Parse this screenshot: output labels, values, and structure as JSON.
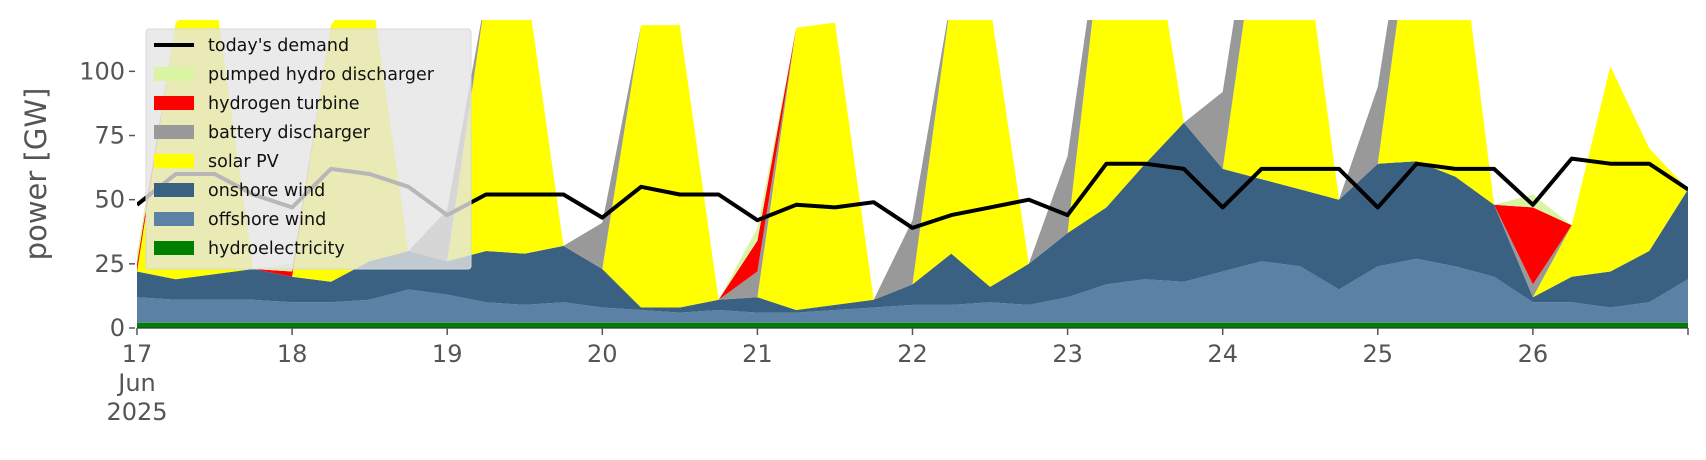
{
  "chart_data": {
    "type": "area",
    "ylabel": "power [GW]",
    "ylim": [
      0,
      120
    ],
    "y_ticks": [
      0,
      25,
      50,
      75,
      100
    ],
    "x_days": [
      17,
      18,
      19,
      20,
      21,
      22,
      23,
      24,
      25,
      26,
      27
    ],
    "x_tick_labels": [
      [
        "17",
        "Jun",
        "2025"
      ],
      [
        "18"
      ],
      [
        "19"
      ],
      [
        "20"
      ],
      [
        "21"
      ],
      [
        "22"
      ],
      [
        "23"
      ],
      [
        "24"
      ],
      [
        "25"
      ],
      [
        "26"
      ],
      [
        ""
      ]
    ],
    "xlim": [
      17,
      27
    ],
    "stack_order_bottom_to_top": [
      "hydroelectricity",
      "offshore wind",
      "onshore wind",
      "solar PV",
      "battery discharger",
      "hydrogen turbine",
      "pumped hydro discharger"
    ],
    "x": [
      17.0,
      17.25,
      17.5,
      17.75,
      18.0,
      18.25,
      18.5,
      18.75,
      19.0,
      19.25,
      19.5,
      19.75,
      20.0,
      20.25,
      20.5,
      20.75,
      21.0,
      21.25,
      21.5,
      21.75,
      22.0,
      22.25,
      22.5,
      22.75,
      23.0,
      23.25,
      23.5,
      23.75,
      24.0,
      24.25,
      24.5,
      24.75,
      25.0,
      25.25,
      25.5,
      25.75,
      26.0,
      26.25,
      26.5,
      26.75,
      27.0
    ],
    "series": [
      {
        "name": "hydroelectricity",
        "color": "#008000",
        "values": [
          2,
          2,
          2,
          2,
          2,
          2,
          2,
          2,
          2,
          2,
          2,
          2,
          2,
          2,
          2,
          2,
          2,
          2,
          2,
          2,
          2,
          2,
          2,
          2,
          2,
          2,
          2,
          2,
          2,
          2,
          2,
          2,
          2,
          2,
          2,
          2,
          2,
          2,
          2,
          2,
          2
        ]
      },
      {
        "name": "offshore wind",
        "color": "#5b82a4",
        "values": [
          10,
          9,
          9,
          9,
          8,
          8,
          9,
          13,
          11,
          8,
          7,
          8,
          6,
          5,
          4,
          5,
          4,
          4,
          5,
          6,
          7,
          7,
          8,
          7,
          10,
          15,
          17,
          16,
          20,
          24,
          22,
          13,
          22,
          25,
          22,
          18,
          8,
          8,
          6,
          8,
          17
        ]
      },
      {
        "name": "onshore wind",
        "color": "#3b6182",
        "values": [
          10,
          8,
          10,
          12,
          10,
          8,
          15,
          15,
          13,
          20,
          20,
          22,
          15,
          1,
          2,
          4,
          6,
          1,
          2,
          3,
          8,
          20,
          6,
          16,
          25,
          30,
          45,
          62,
          40,
          32,
          30,
          35,
          40,
          38,
          35,
          28,
          2,
          10,
          14,
          20,
          35
        ]
      },
      {
        "name": "solar PV",
        "color": "#ffff00",
        "values": [
          0,
          100,
          110,
          0,
          0,
          100,
          110,
          0,
          0,
          100,
          110,
          0,
          0,
          110,
          110,
          0,
          0,
          110,
          110,
          0,
          0,
          100,
          110,
          0,
          0,
          120,
          110,
          0,
          0,
          110,
          110,
          0,
          0,
          110,
          110,
          0,
          0,
          20,
          80,
          40,
          0
        ]
      },
      {
        "name": "battery discharger",
        "color": "#999999",
        "values": [
          0,
          0,
          0,
          0,
          0,
          0,
          0,
          0,
          20,
          0,
          0,
          0,
          18,
          0,
          0,
          0,
          10,
          0,
          0,
          0,
          25,
          0,
          0,
          0,
          30,
          5,
          0,
          0,
          30,
          20,
          0,
          0,
          30,
          15,
          0,
          0,
          5,
          0,
          0,
          0,
          0
        ]
      },
      {
        "name": "hydrogen turbine",
        "color": "#ff0000",
        "values": [
          3,
          0,
          0,
          0,
          2,
          0,
          0,
          0,
          0,
          0,
          0,
          0,
          0,
          0,
          0,
          0,
          12,
          0,
          0,
          0,
          0,
          0,
          0,
          0,
          0,
          0,
          0,
          0,
          0,
          0,
          0,
          0,
          0,
          0,
          0,
          0,
          30,
          0,
          0,
          0,
          0
        ]
      },
      {
        "name": "pumped hydro discharger",
        "color": "#d9f5a3",
        "values": [
          4,
          0,
          0,
          0,
          3,
          0,
          0,
          0,
          0,
          0,
          0,
          0,
          0,
          0,
          0,
          0,
          5,
          0,
          0,
          0,
          0,
          0,
          0,
          0,
          0,
          0,
          0,
          0,
          0,
          0,
          0,
          0,
          0,
          0,
          0,
          0,
          5,
          0,
          0,
          0,
          0
        ]
      }
    ],
    "demand": {
      "name": "today's demand",
      "color": "#000000",
      "values": [
        48,
        60,
        60,
        52,
        47,
        62,
        60,
        55,
        44,
        52,
        52,
        52,
        43,
        55,
        52,
        52,
        42,
        48,
        47,
        49,
        39,
        44,
        47,
        50,
        44,
        64,
        64,
        62,
        47,
        62,
        62,
        62,
        47,
        64,
        62,
        62,
        48,
        66,
        64,
        64,
        54
      ]
    },
    "legend_position": "upper-left"
  }
}
